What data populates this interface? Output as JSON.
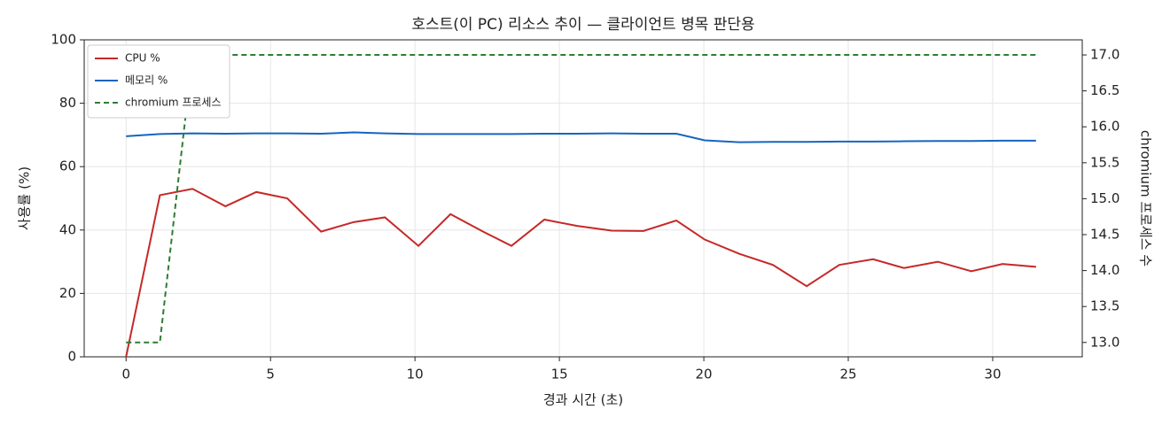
{
  "chart_data": {
    "type": "line",
    "title": "호스트(이 PC) 리소스 추이 — 클라이언트 병목 판단용",
    "x_label": "경과 시간 (초)",
    "y_label": "사용률 (%)",
    "y2_label": "chromium 프로세스 수",
    "x": [
      0,
      1.17,
      2.3,
      3.44,
      4.51,
      5.58,
      6.75,
      7.88,
      8.96,
      10.12,
      11.23,
      12.36,
      13.34,
      14.48,
      15.61,
      16.81,
      17.91,
      19.05,
      20.03,
      21.23,
      22.39,
      23.56,
      24.69,
      25.86,
      26.93,
      28.1,
      29.26,
      30.34,
      31.5
    ],
    "series": [
      {
        "name": "CPU %",
        "color": "#c62828",
        "values": [
          0,
          51,
          53,
          47.5,
          52,
          50,
          39.5,
          42.5,
          44,
          35,
          45,
          39.5,
          35,
          43.3,
          41.3,
          39.8,
          39.7,
          43,
          37,
          32.5,
          29,
          22.3,
          29,
          30.8,
          28,
          30,
          27,
          29.3,
          28.4
        ]
      },
      {
        "name": "메모리 %",
        "color": "#1565c0",
        "values": [
          69.6,
          70.3,
          70.5,
          70.4,
          70.5,
          70.5,
          70.4,
          70.8,
          70.5,
          70.3,
          70.3,
          70.3,
          70.3,
          70.4,
          70.4,
          70.5,
          70.4,
          70.4,
          68.3,
          67.7,
          67.8,
          67.8,
          67.9,
          67.9,
          68,
          68.1,
          68.1,
          68.2,
          68.2
        ]
      },
      {
        "name": "chromium 프로세스",
        "color": "#2e7d32",
        "dashed": true,
        "axis": "y2",
        "values": [
          13,
          13,
          17,
          17,
          17,
          17,
          17,
          17,
          17,
          17,
          17,
          17,
          17,
          17,
          17,
          17,
          17,
          17,
          17,
          17,
          17,
          17,
          17,
          17,
          17,
          17,
          17,
          17,
          17
        ]
      }
    ],
    "xlim": [
      -1.45,
      33.1
    ],
    "xticks": [
      0,
      5,
      10,
      15,
      20,
      25,
      30
    ],
    "ylim": [
      0,
      100
    ],
    "yticks": [
      0,
      20,
      40,
      60,
      80,
      100
    ],
    "y2lim": [
      12.8,
      17.21
    ],
    "y2ticks": [
      {
        "value": 13,
        "label": "13.0"
      },
      13.5,
      {
        "value": 14,
        "label": "14.0"
      },
      14.5,
      {
        "value": 15,
        "label": "15.0"
      },
      15.5,
      {
        "value": 16,
        "label": "16.0"
      },
      16.5,
      {
        "value": 17,
        "label": "17.0"
      }
    ],
    "grid": true,
    "legend": "upper left"
  }
}
